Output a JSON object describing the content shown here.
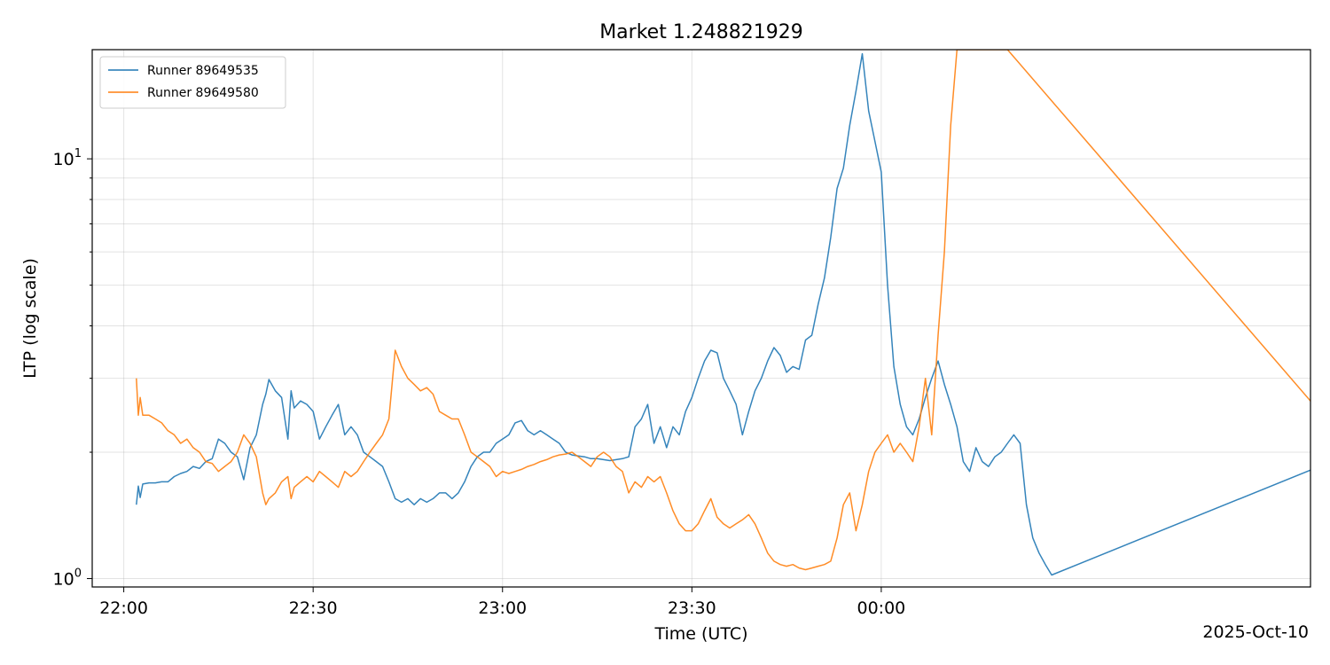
{
  "chart_data": {
    "type": "line",
    "title": "Market 1.248821929",
    "xlabel": "Time (UTC)",
    "ylabel": "LTP (log scale)",
    "y_scale": "log",
    "ylim": [
      0.955,
      18.2
    ],
    "x_unit": "HH:MM (UTC)",
    "xlim": [
      "21:55",
      "25:08"
    ],
    "x_ticks": [
      "22:00",
      "22:30",
      "23:00",
      "23:30",
      "00:00"
    ],
    "x_offset_label": "2025-Oct-10",
    "grid": true,
    "legend_position": "upper-left",
    "series": [
      {
        "name": "Runner 89649535",
        "color": "#1f77b4",
        "points": [
          [
            "22:02",
            1.5
          ],
          [
            "22:02.3",
            1.66
          ],
          [
            "22:02.6",
            1.56
          ],
          [
            "22:03",
            1.68
          ],
          [
            "22:04",
            1.69
          ],
          [
            "22:05",
            1.69
          ],
          [
            "22:06",
            1.7
          ],
          [
            "22:07",
            1.7
          ],
          [
            "22:08",
            1.75
          ],
          [
            "22:09",
            1.78
          ],
          [
            "22:10",
            1.8
          ],
          [
            "22:11",
            1.85
          ],
          [
            "22:12",
            1.83
          ],
          [
            "22:13",
            1.9
          ],
          [
            "22:14",
            1.93
          ],
          [
            "22:15",
            2.15
          ],
          [
            "22:16",
            2.1
          ],
          [
            "22:17",
            2.0
          ],
          [
            "22:18",
            1.95
          ],
          [
            "22:19",
            1.72
          ],
          [
            "22:20",
            2.05
          ],
          [
            "22:21",
            2.2
          ],
          [
            "22:22",
            2.6
          ],
          [
            "22:22.5",
            2.75
          ],
          [
            "22:23",
            2.98
          ],
          [
            "22:24",
            2.8
          ],
          [
            "22:25",
            2.7
          ],
          [
            "22:26",
            2.15
          ],
          [
            "22:26.5",
            2.8
          ],
          [
            "22:27",
            2.55
          ],
          [
            "22:28",
            2.65
          ],
          [
            "22:29",
            2.6
          ],
          [
            "22:30",
            2.5
          ],
          [
            "22:31",
            2.15
          ],
          [
            "22:32",
            2.3
          ],
          [
            "22:33",
            2.45
          ],
          [
            "22:34",
            2.6
          ],
          [
            "22:35",
            2.2
          ],
          [
            "22:36",
            2.3
          ],
          [
            "22:37",
            2.2
          ],
          [
            "22:38",
            2.0
          ],
          [
            "22:39",
            1.95
          ],
          [
            "22:40",
            1.9
          ],
          [
            "22:41",
            1.85
          ],
          [
            "22:42",
            1.7
          ],
          [
            "22:43",
            1.55
          ],
          [
            "22:44",
            1.52
          ],
          [
            "22:45",
            1.55
          ],
          [
            "22:46",
            1.5
          ],
          [
            "22:47",
            1.55
          ],
          [
            "22:48",
            1.52
          ],
          [
            "22:49",
            1.55
          ],
          [
            "22:50",
            1.6
          ],
          [
            "22:51",
            1.6
          ],
          [
            "22:52",
            1.55
          ],
          [
            "22:53",
            1.6
          ],
          [
            "22:54",
            1.7
          ],
          [
            "22:55",
            1.85
          ],
          [
            "22:56",
            1.95
          ],
          [
            "22:57",
            2.0
          ],
          [
            "22:58",
            2.0
          ],
          [
            "22:59",
            2.1
          ],
          [
            "23:00",
            2.15
          ],
          [
            "23:01",
            2.2
          ],
          [
            "23:02",
            2.35
          ],
          [
            "23:03",
            2.38
          ],
          [
            "23:04",
            2.25
          ],
          [
            "23:05",
            2.2
          ],
          [
            "23:06",
            2.25
          ],
          [
            "23:07",
            2.2
          ],
          [
            "23:08",
            2.15
          ],
          [
            "23:09",
            2.1
          ],
          [
            "23:10",
            2.0
          ],
          [
            "23:11",
            1.97
          ],
          [
            "23:12",
            1.96
          ],
          [
            "23:13",
            1.95
          ],
          [
            "23:14",
            1.93
          ],
          [
            "23:15",
            1.93
          ],
          [
            "23:16",
            1.92
          ],
          [
            "23:17",
            1.91
          ],
          [
            "23:18",
            1.92
          ],
          [
            "23:19",
            1.93
          ],
          [
            "23:20",
            1.95
          ],
          [
            "23:21",
            2.3
          ],
          [
            "23:22",
            2.4
          ],
          [
            "23:23",
            2.6
          ],
          [
            "23:24",
            2.1
          ],
          [
            "23:25",
            2.3
          ],
          [
            "23:26",
            2.05
          ],
          [
            "23:27",
            2.3
          ],
          [
            "23:28",
            2.2
          ],
          [
            "23:29",
            2.5
          ],
          [
            "23:30",
            2.7
          ],
          [
            "23:31",
            3.0
          ],
          [
            "23:32",
            3.3
          ],
          [
            "23:33",
            3.5
          ],
          [
            "23:34",
            3.45
          ],
          [
            "23:35",
            3.0
          ],
          [
            "23:36",
            2.8
          ],
          [
            "23:37",
            2.6
          ],
          [
            "23:38",
            2.2
          ],
          [
            "23:39",
            2.5
          ],
          [
            "23:40",
            2.8
          ],
          [
            "23:41",
            3.0
          ],
          [
            "23:42",
            3.3
          ],
          [
            "23:43",
            3.55
          ],
          [
            "23:44",
            3.4
          ],
          [
            "23:45",
            3.1
          ],
          [
            "23:46",
            3.2
          ],
          [
            "23:47",
            3.15
          ],
          [
            "23:48",
            3.7
          ],
          [
            "23:49",
            3.8
          ],
          [
            "23:50",
            4.5
          ],
          [
            "23:51",
            5.2
          ],
          [
            "23:52",
            6.5
          ],
          [
            "23:53",
            8.5
          ],
          [
            "23:54",
            9.5
          ],
          [
            "23:55",
            12.0
          ],
          [
            "23:56",
            14.5
          ],
          [
            "23:57",
            17.8
          ],
          [
            "23:58",
            13.0
          ],
          [
            "23:59",
            11.0
          ],
          [
            "24:00",
            9.3
          ],
          [
            "24:01",
            5.0
          ],
          [
            "24:02",
            3.2
          ],
          [
            "24:03",
            2.6
          ],
          [
            "24:04",
            2.3
          ],
          [
            "24:05",
            2.2
          ],
          [
            "24:06",
            2.4
          ],
          [
            "24:07",
            2.7
          ],
          [
            "24:08",
            3.0
          ],
          [
            "24:09",
            3.3
          ],
          [
            "24:10",
            2.9
          ],
          [
            "24:11",
            2.6
          ],
          [
            "24:12",
            2.3
          ],
          [
            "24:13",
            1.9
          ],
          [
            "24:14",
            1.8
          ],
          [
            "24:15",
            2.05
          ],
          [
            "24:16",
            1.9
          ],
          [
            "24:17",
            1.85
          ],
          [
            "24:18",
            1.95
          ],
          [
            "24:19",
            2.0
          ],
          [
            "24:20",
            2.1
          ],
          [
            "24:21",
            2.2
          ],
          [
            "24:22",
            2.1
          ],
          [
            "24:23",
            1.5
          ],
          [
            "24:24",
            1.25
          ],
          [
            "24:25",
            1.15
          ],
          [
            "24:26",
            1.08
          ],
          [
            "24:27",
            1.02
          ],
          [
            "25:15",
            2.0
          ]
        ]
      },
      {
        "name": "Runner 89649580",
        "color": "#ff7f0e",
        "points": [
          [
            "22:02",
            3.0
          ],
          [
            "22:02.3",
            2.45
          ],
          [
            "22:02.6",
            2.7
          ],
          [
            "22:03",
            2.45
          ],
          [
            "22:04",
            2.45
          ],
          [
            "22:05",
            2.4
          ],
          [
            "22:06",
            2.35
          ],
          [
            "22:07",
            2.25
          ],
          [
            "22:08",
            2.2
          ],
          [
            "22:09",
            2.1
          ],
          [
            "22:10",
            2.15
          ],
          [
            "22:11",
            2.05
          ],
          [
            "22:12",
            2.0
          ],
          [
            "22:13",
            1.9
          ],
          [
            "22:14",
            1.88
          ],
          [
            "22:15",
            1.8
          ],
          [
            "22:16",
            1.85
          ],
          [
            "22:17",
            1.9
          ],
          [
            "22:18",
            2.0
          ],
          [
            "22:19",
            2.2
          ],
          [
            "22:20",
            2.1
          ],
          [
            "22:21",
            1.95
          ],
          [
            "22:22",
            1.6
          ],
          [
            "22:22.5",
            1.5
          ],
          [
            "22:23",
            1.55
          ],
          [
            "22:24",
            1.6
          ],
          [
            "22:25",
            1.7
          ],
          [
            "22:26",
            1.75
          ],
          [
            "22:26.5",
            1.55
          ],
          [
            "22:27",
            1.65
          ],
          [
            "22:28",
            1.7
          ],
          [
            "22:29",
            1.75
          ],
          [
            "22:30",
            1.7
          ],
          [
            "22:31",
            1.8
          ],
          [
            "22:32",
            1.75
          ],
          [
            "22:33",
            1.7
          ],
          [
            "22:34",
            1.65
          ],
          [
            "22:35",
            1.8
          ],
          [
            "22:36",
            1.75
          ],
          [
            "22:37",
            1.8
          ],
          [
            "22:38",
            1.9
          ],
          [
            "22:39",
            2.0
          ],
          [
            "22:40",
            2.1
          ],
          [
            "22:41",
            2.2
          ],
          [
            "22:42",
            2.4
          ],
          [
            "22:43",
            3.5
          ],
          [
            "22:44",
            3.2
          ],
          [
            "22:45",
            3.0
          ],
          [
            "22:46",
            2.9
          ],
          [
            "22:47",
            2.8
          ],
          [
            "22:48",
            2.85
          ],
          [
            "22:49",
            2.75
          ],
          [
            "22:50",
            2.5
          ],
          [
            "22:51",
            2.45
          ],
          [
            "22:52",
            2.4
          ],
          [
            "22:53",
            2.4
          ],
          [
            "22:54",
            2.2
          ],
          [
            "22:55",
            2.0
          ],
          [
            "22:56",
            1.95
          ],
          [
            "22:57",
            1.9
          ],
          [
            "22:58",
            1.85
          ],
          [
            "22:59",
            1.75
          ],
          [
            "23:00",
            1.8
          ],
          [
            "23:01",
            1.78
          ],
          [
            "23:02",
            1.8
          ],
          [
            "23:03",
            1.82
          ],
          [
            "23:04",
            1.85
          ],
          [
            "23:05",
            1.87
          ],
          [
            "23:06",
            1.9
          ],
          [
            "23:07",
            1.92
          ],
          [
            "23:08",
            1.95
          ],
          [
            "23:09",
            1.97
          ],
          [
            "23:10",
            1.98
          ],
          [
            "23:11",
            2.0
          ],
          [
            "23:12",
            1.95
          ],
          [
            "23:13",
            1.9
          ],
          [
            "23:14",
            1.85
          ],
          [
            "23:15",
            1.95
          ],
          [
            "23:16",
            2.0
          ],
          [
            "23:17",
            1.95
          ],
          [
            "23:18",
            1.85
          ],
          [
            "23:19",
            1.8
          ],
          [
            "23:20",
            1.6
          ],
          [
            "23:21",
            1.7
          ],
          [
            "23:22",
            1.65
          ],
          [
            "23:23",
            1.75
          ],
          [
            "23:24",
            1.7
          ],
          [
            "23:25",
            1.75
          ],
          [
            "23:26",
            1.6
          ],
          [
            "23:27",
            1.45
          ],
          [
            "23:28",
            1.35
          ],
          [
            "23:29",
            1.3
          ],
          [
            "23:30",
            1.3
          ],
          [
            "23:31",
            1.35
          ],
          [
            "23:32",
            1.45
          ],
          [
            "23:33",
            1.55
          ],
          [
            "23:34",
            1.4
          ],
          [
            "23:35",
            1.35
          ],
          [
            "23:36",
            1.32
          ],
          [
            "23:37",
            1.35
          ],
          [
            "23:38",
            1.38
          ],
          [
            "23:39",
            1.42
          ],
          [
            "23:40",
            1.35
          ],
          [
            "23:41",
            1.25
          ],
          [
            "23:42",
            1.15
          ],
          [
            "23:43",
            1.1
          ],
          [
            "23:44",
            1.08
          ],
          [
            "23:45",
            1.07
          ],
          [
            "23:46",
            1.08
          ],
          [
            "23:47",
            1.06
          ],
          [
            "23:48",
            1.05
          ],
          [
            "23:49",
            1.06
          ],
          [
            "23:50",
            1.07
          ],
          [
            "23:51",
            1.08
          ],
          [
            "23:52",
            1.1
          ],
          [
            "23:53",
            1.25
          ],
          [
            "23:54",
            1.5
          ],
          [
            "23:55",
            1.6
          ],
          [
            "23:56",
            1.3
          ],
          [
            "23:57",
            1.5
          ],
          [
            "23:58",
            1.8
          ],
          [
            "23:59",
            2.0
          ],
          [
            "24:00",
            2.1
          ],
          [
            "24:01",
            2.2
          ],
          [
            "24:02",
            2.0
          ],
          [
            "24:03",
            2.1
          ],
          [
            "24:04",
            2.0
          ],
          [
            "24:05",
            1.9
          ],
          [
            "24:06",
            2.3
          ],
          [
            "24:07",
            3.0
          ],
          [
            "24:08",
            2.2
          ],
          [
            "24:09",
            3.8
          ],
          [
            "24:10",
            6.0
          ],
          [
            "24:11",
            12.0
          ],
          [
            "24:12",
            18.2
          ],
          [
            "24:20",
            18.2
          ],
          [
            "25:15",
            2.0
          ]
        ]
      }
    ]
  }
}
